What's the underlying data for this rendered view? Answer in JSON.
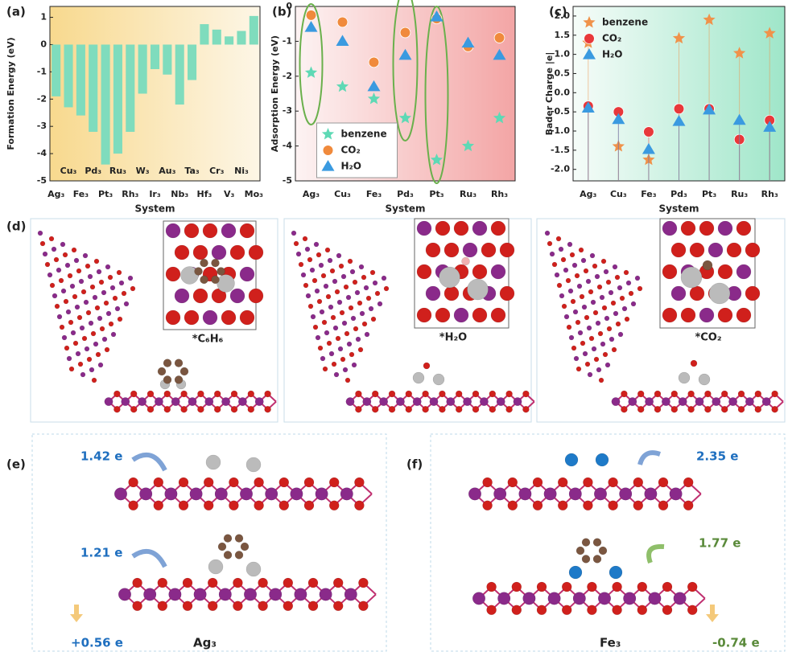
{
  "chart_data": [
    {
      "type": "bar",
      "panel_label": "(a)",
      "ylabel": "Formation Energy (eV)",
      "xlabel": "System",
      "categories": [
        "Ag₃",
        "Cu₃",
        "Fe₃",
        "Pd₃",
        "Pt₃",
        "Ru₃",
        "Rh₃",
        "W₃",
        "Ir₃",
        "Au₃",
        "Nb₃",
        "Ta₃",
        "Hf₃",
        "Cr₃",
        "V₃",
        "Ni₃",
        "Mo₃"
      ],
      "values": [
        -1.9,
        -2.3,
        -2.6,
        -3.2,
        -4.4,
        -4.0,
        -3.2,
        -1.8,
        -0.9,
        -1.1,
        -2.2,
        -1.3,
        0.75,
        0.55,
        0.3,
        0.5,
        1.05
      ],
      "color": "#7fdcbd",
      "ylim": [
        -5,
        1.4
      ],
      "yticks": [
        -5,
        -4,
        -3,
        -2,
        -1,
        0,
        1
      ]
    },
    {
      "type": "scatter",
      "panel_label": "(b)",
      "ylabel": "Adsorption Energy (eV)",
      "xlabel": "System",
      "categories": [
        "Ag₃",
        "Cu₃",
        "Fe₃",
        "Pd₃",
        "Pt₃",
        "Ru₃",
        "Rh₃"
      ],
      "series": [
        {
          "name": "benzene",
          "color": "#5ed9b5",
          "marker": "star",
          "values": [
            -1.9,
            -2.3,
            -2.65,
            -3.2,
            -4.4,
            -4.0,
            -3.2
          ]
        },
        {
          "name": "CO₂",
          "color": "#f08a3c",
          "marker": "circle",
          "values": [
            -0.25,
            -0.45,
            -1.6,
            -0.75,
            -0.35,
            -1.15,
            -0.9
          ]
        },
        {
          "name": "H₂O",
          "color": "#3a9ae0",
          "marker": "triangle",
          "values": [
            -0.6,
            -1.0,
            -2.3,
            -1.4,
            -0.3,
            -1.05,
            -1.4
          ]
        }
      ],
      "ylim": [
        -5,
        0
      ],
      "yticks": [
        -5,
        -4,
        -3,
        -2,
        -1,
        0
      ],
      "legend": "lower center"
    },
    {
      "type": "scatter",
      "panel_label": "(c)",
      "ylabel": "Bader Charge |e|",
      "xlabel": "System",
      "categories": [
        "Ag₃",
        "Cu₃",
        "Fe₃",
        "Pd₃",
        "Pt₃",
        "Ru₃",
        "Rh₃"
      ],
      "series": [
        {
          "name": "benzene",
          "color": "#f0924a",
          "marker": "star",
          "values": [
            1.3,
            -1.4,
            -1.75,
            1.42,
            1.9,
            1.03,
            1.55
          ]
        },
        {
          "name": "CO₂",
          "color": "#e8383a",
          "marker": "circle",
          "values": [
            -0.35,
            -0.5,
            -1.02,
            -0.42,
            -0.42,
            -1.22,
            -0.72
          ]
        },
        {
          "name": "H₂O",
          "color": "#3a9ae0",
          "marker": "triangle",
          "values": [
            -0.4,
            -0.7,
            -1.48,
            -0.75,
            -0.45,
            -0.72,
            -0.9
          ]
        }
      ],
      "ylim": [
        -2.3,
        2.25
      ],
      "stems": true,
      "legend": "upper left",
      "yticks": [
        {
          "value": -2,
          "label": "-2.0"
        },
        -1.5,
        {
          "value": -1,
          "label": "-1.0"
        },
        -0.5,
        {
          "value": 0,
          "label": "0.0"
        },
        0.5,
        {
          "value": 1,
          "label": "1.0"
        },
        1.5,
        {
          "value": 2,
          "label": "2.0"
        }
      ]
    }
  ],
  "structures": {
    "d": {
      "label": "(d)",
      "captions": [
        "*C₆H₆",
        "*H₂O",
        "*CO₂"
      ]
    },
    "e": {
      "label": "(e)",
      "charges": [
        "1.42 e",
        "1.21 e",
        "+0.56 e"
      ],
      "system": "Ag₃"
    },
    "f": {
      "label": "(f)",
      "charges": [
        "2.35 e",
        "1.77 e",
        "-0.74 e"
      ],
      "system": "Fe₃"
    }
  }
}
